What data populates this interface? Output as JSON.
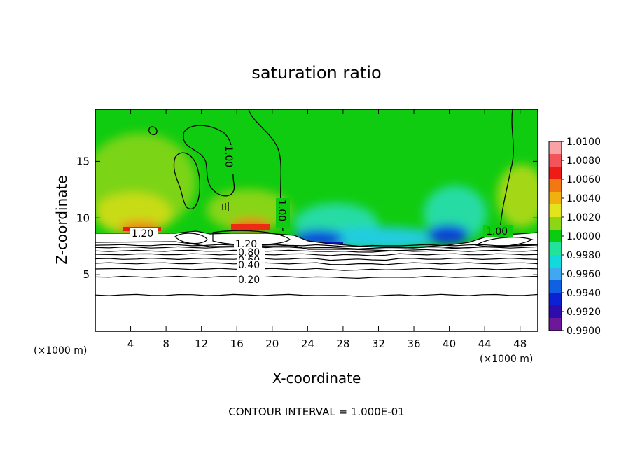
{
  "chart_data": {
    "type": "heatmap",
    "title": "saturation ratio",
    "xlabel": "X-coordinate",
    "ylabel": "Z-coordinate",
    "x_unit_left": "(×1000 m)",
    "x_unit_right": "(×1000 m)",
    "xlim": [
      0,
      50
    ],
    "ylim": [
      0,
      19.6
    ],
    "x_ticks": [
      "4",
      "8",
      "12",
      "16",
      "20",
      "24",
      "28",
      "32",
      "36",
      "40",
      "44",
      "48"
    ],
    "y_ticks": [
      "5",
      "10",
      "15"
    ],
    "footer": "CONTOUR INTERVAL = 1.000E-01",
    "colorbar": {
      "range": [
        0.99,
        1.01
      ],
      "labels": [
        "1.0100",
        "1.0080",
        "1.0060",
        "1.0040",
        "1.0020",
        "1.0000",
        "0.9980",
        "0.9960",
        "0.9940",
        "0.9920",
        "0.9900"
      ],
      "colors": [
        "#f8a2a6",
        "#f2545a",
        "#ee1c14",
        "#f27814",
        "#f2b010",
        "#e4e41c",
        "#8cd614",
        "#0ccc12",
        "#22e29c",
        "#10dada",
        "#40a8f0",
        "#1060e4",
        "#0c20d4",
        "#2c0cac",
        "#6c1898"
      ]
    },
    "contour_labels": [
      "1.00",
      "1.00",
      "1.00",
      "1.20",
      "1.20",
      "0.80",
      "0.60",
      "0.40",
      "0.20"
    ],
    "contour_levels": [
      {
        "level": 0.1,
        "z": 3.2
      },
      {
        "level": 0.2,
        "z": 4.8
      },
      {
        "level": 0.3,
        "z": 5.5
      },
      {
        "level": 0.4,
        "z": 6.0
      },
      {
        "level": 0.5,
        "z": 6.4
      },
      {
        "level": 0.6,
        "z": 6.8
      },
      {
        "level": 0.7,
        "z": 7.1
      },
      {
        "level": 0.8,
        "z": 7.4
      },
      {
        "level": 0.9,
        "z": 7.6
      }
    ],
    "cloud_base_z": 8.9
  }
}
